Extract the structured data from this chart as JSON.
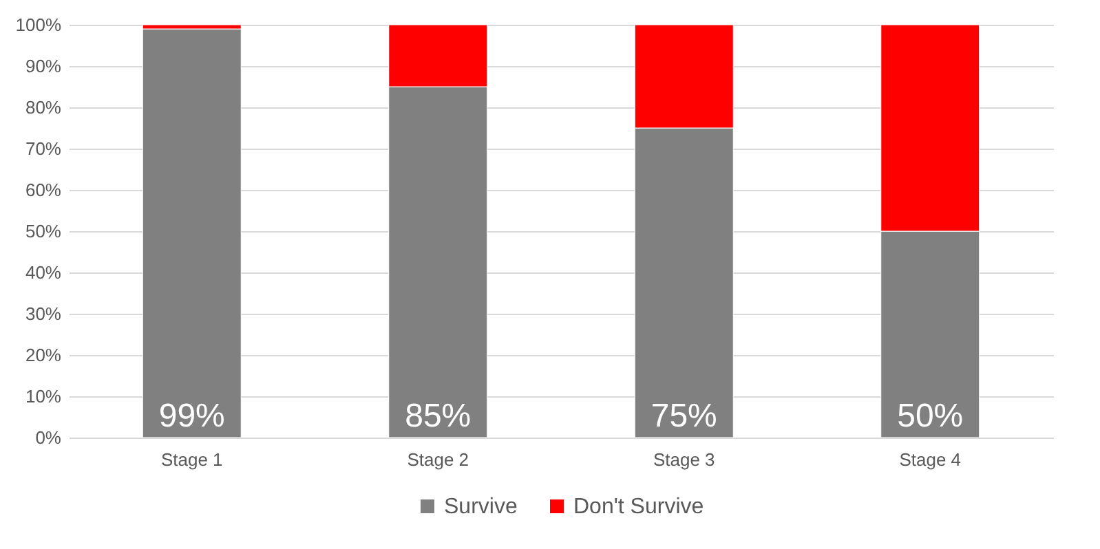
{
  "chart_data": {
    "type": "bar",
    "stacked": true,
    "categories": [
      "Stage 1",
      "Stage 2",
      "Stage 3",
      "Stage 4"
    ],
    "series": [
      {
        "name": "Survive",
        "color": "#808080",
        "values": [
          99,
          85,
          75,
          50
        ],
        "value_labels": [
          "99%",
          "85%",
          "75%",
          "50%"
        ]
      },
      {
        "name": "Don't Survive",
        "color": "#ff0000",
        "values": [
          1,
          15,
          25,
          50
        ]
      }
    ],
    "ylim": [
      0,
      100
    ],
    "yticks": [
      {
        "value": 0,
        "label": "0%"
      },
      {
        "value": 10,
        "label": "10%"
      },
      {
        "value": 20,
        "label": "20%"
      },
      {
        "value": 30,
        "label": "30%"
      },
      {
        "value": 40,
        "label": "40%"
      },
      {
        "value": 50,
        "label": "50%"
      },
      {
        "value": 60,
        "label": "60%"
      },
      {
        "value": 70,
        "label": "70%"
      },
      {
        "value": 80,
        "label": "80%"
      },
      {
        "value": 90,
        "label": "90%"
      },
      {
        "value": 100,
        "label": "100%"
      }
    ],
    "grid": "y",
    "legend": "bottom"
  }
}
